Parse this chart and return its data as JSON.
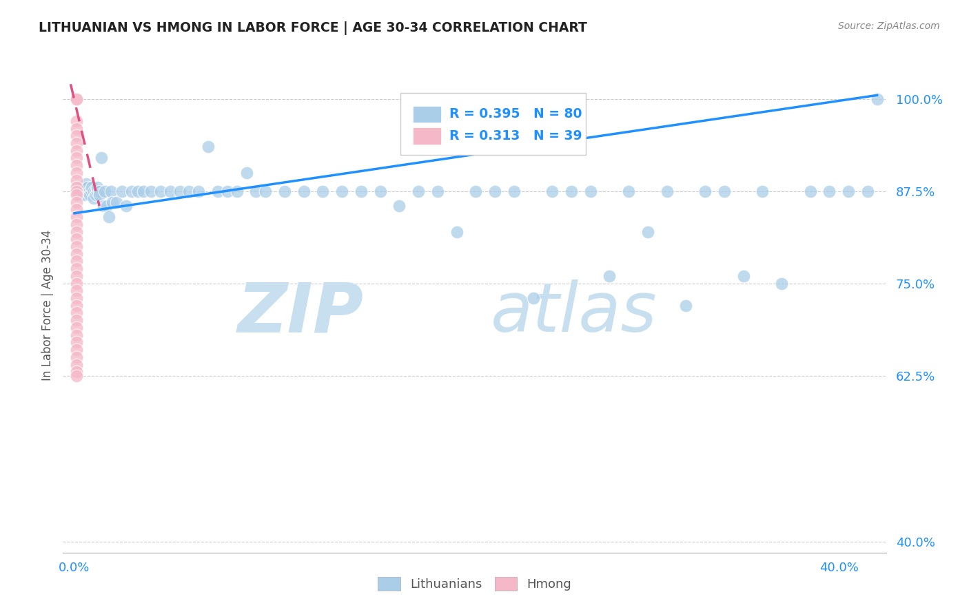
{
  "title": "LITHUANIAN VS HMONG IN LABOR FORCE | AGE 30-34 CORRELATION CHART",
  "source": "Source: ZipAtlas.com",
  "ylabel": "In Labor Force | Age 30-34",
  "watermark_zip": "ZIP",
  "watermark_atlas": "atlas",
  "legend_blue_r": "R = 0.395",
  "legend_blue_n": "N = 80",
  "legend_pink_r": "R = 0.313",
  "legend_pink_n": "N = 39",
  "legend_label_blue": "Lithuanians",
  "legend_label_pink": "Hmong",
  "xlim": [
    -0.006,
    0.425
  ],
  "ylim": [
    0.385,
    1.055
  ],
  "yticks": [
    0.4,
    0.625,
    0.75,
    0.875,
    1.0
  ],
  "ytick_labels": [
    "40.0%",
    "62.5%",
    "75.0%",
    "87.5%",
    "100.0%"
  ],
  "xtick_positions": [
    0.0,
    0.04,
    0.08,
    0.12,
    0.16,
    0.2,
    0.24,
    0.28,
    0.32,
    0.36,
    0.4
  ],
  "blue_scatter_x": [
    0.002,
    0.003,
    0.003,
    0.004,
    0.005,
    0.005,
    0.006,
    0.006,
    0.007,
    0.007,
    0.008,
    0.008,
    0.009,
    0.009,
    0.01,
    0.01,
    0.011,
    0.011,
    0.012,
    0.012,
    0.013,
    0.013,
    0.014,
    0.015,
    0.016,
    0.017,
    0.018,
    0.019,
    0.02,
    0.022,
    0.025,
    0.027,
    0.03,
    0.033,
    0.036,
    0.04,
    0.045,
    0.05,
    0.055,
    0.06,
    0.065,
    0.07,
    0.075,
    0.08,
    0.085,
    0.09,
    0.095,
    0.1,
    0.11,
    0.12,
    0.13,
    0.14,
    0.15,
    0.16,
    0.17,
    0.18,
    0.19,
    0.2,
    0.21,
    0.22,
    0.23,
    0.24,
    0.25,
    0.26,
    0.27,
    0.28,
    0.29,
    0.3,
    0.31,
    0.32,
    0.33,
    0.34,
    0.35,
    0.36,
    0.37,
    0.385,
    0.395,
    0.405,
    0.415,
    0.42
  ],
  "blue_scatter_y": [
    0.875,
    0.88,
    0.87,
    0.875,
    0.88,
    0.87,
    0.875,
    0.885,
    0.875,
    0.88,
    0.875,
    0.87,
    0.875,
    0.88,
    0.875,
    0.865,
    0.875,
    0.87,
    0.875,
    0.88,
    0.875,
    0.87,
    0.92,
    0.855,
    0.875,
    0.855,
    0.84,
    0.875,
    0.86,
    0.86,
    0.875,
    0.855,
    0.875,
    0.875,
    0.875,
    0.875,
    0.875,
    0.875,
    0.875,
    0.875,
    0.875,
    0.935,
    0.875,
    0.875,
    0.875,
    0.9,
    0.875,
    0.875,
    0.875,
    0.875,
    0.875,
    0.875,
    0.875,
    0.875,
    0.855,
    0.875,
    0.875,
    0.82,
    0.875,
    0.875,
    0.875,
    0.73,
    0.875,
    0.875,
    0.875,
    0.76,
    0.875,
    0.82,
    0.875,
    0.72,
    0.875,
    0.875,
    0.76,
    0.875,
    0.75,
    0.875,
    0.875,
    0.875,
    0.875,
    1.0
  ],
  "pink_scatter_x": [
    0.001,
    0.001,
    0.001,
    0.001,
    0.001,
    0.001,
    0.001,
    0.001,
    0.001,
    0.001,
    0.001,
    0.001,
    0.001,
    0.001,
    0.001,
    0.001,
    0.001,
    0.001,
    0.001,
    0.001,
    0.001,
    0.001,
    0.001,
    0.001,
    0.001,
    0.001,
    0.001,
    0.001,
    0.001,
    0.001,
    0.001,
    0.001,
    0.001,
    0.001,
    0.001,
    0.001,
    0.001,
    0.001,
    0.001
  ],
  "pink_scatter_y": [
    1.0,
    1.0,
    0.97,
    0.96,
    0.95,
    0.94,
    0.93,
    0.92,
    0.91,
    0.9,
    0.89,
    0.88,
    0.875,
    0.87,
    0.86,
    0.85,
    0.84,
    0.83,
    0.82,
    0.81,
    0.8,
    0.79,
    0.78,
    0.77,
    0.76,
    0.75,
    0.74,
    0.73,
    0.72,
    0.71,
    0.7,
    0.69,
    0.68,
    0.67,
    0.66,
    0.65,
    0.64,
    0.63,
    0.625
  ],
  "blue_line_x": [
    0.0,
    0.42
  ],
  "blue_line_y": [
    0.845,
    1.005
  ],
  "pink_line_x": [
    -0.002,
    0.013
  ],
  "pink_line_y": [
    1.02,
    0.855
  ],
  "blue_dot_color": "#aacde8",
  "pink_dot_color": "#f5b8c8",
  "blue_line_color": "#1e90ff",
  "pink_line_color": "#e05080",
  "pink_line_dash": [
    6,
    4
  ],
  "title_color": "#222222",
  "axis_label_color": "#1e90ff",
  "ylabel_color": "#555555",
  "grid_color": "#cccccc",
  "background_color": "#ffffff",
  "watermark_zip_color": "#c8dff0",
  "watermark_atlas_color": "#c8dff0",
  "legend_text_color": "#1e90ff",
  "legend_r_color": "#333333"
}
